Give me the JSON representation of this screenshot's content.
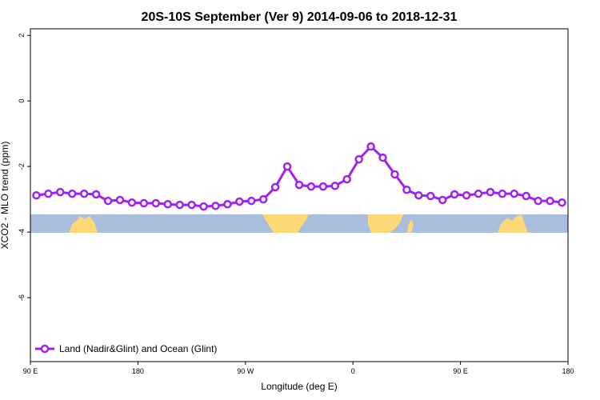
{
  "chart_data": {
    "type": "line",
    "title": "20S-10S September (Ver 9)   2014-09-06 to 2018-12-31",
    "xlabel": "Longitude (deg E)",
    "ylabel": "XCO2 - MLO trend (ppm)",
    "x": [
      95,
      105,
      115,
      125,
      135,
      145,
      155,
      165,
      175,
      185,
      195,
      205,
      215,
      225,
      235,
      245,
      255,
      265,
      275,
      285,
      295,
      305,
      315,
      325,
      335,
      345,
      355,
      365,
      375,
      385,
      395,
      405,
      415,
      425,
      435,
      445,
      455,
      465,
      475,
      485,
      495,
      505,
      515,
      525,
      535
    ],
    "series": [
      {
        "name": "Land (Nadir&Glint) and Ocean (Glint)",
        "color": "#a020f0",
        "values": [
          -2.88,
          -2.83,
          -2.78,
          -2.83,
          -2.83,
          -2.85,
          -3.05,
          -3.02,
          -3.1,
          -3.12,
          -3.12,
          -3.15,
          -3.17,
          -3.17,
          -3.22,
          -3.2,
          -3.15,
          -3.07,
          -3.05,
          -3.0,
          -2.63,
          -2.0,
          -2.56,
          -2.61,
          -2.61,
          -2.59,
          -2.39,
          -1.78,
          -1.39,
          -1.73,
          -2.24,
          -2.71,
          -2.88,
          -2.9,
          -3.02,
          -2.85,
          -2.88,
          -2.83,
          -2.78,
          -2.83,
          -2.83,
          -2.9,
          -3.05,
          -3.05,
          -3.1
        ]
      }
    ],
    "xlim": [
      90,
      540
    ],
    "xticks": [
      {
        "value": 90,
        "label": "90 E"
      },
      {
        "value": 180,
        "label": "180"
      },
      {
        "value": 270,
        "label": "90 W"
      },
      {
        "value": 360,
        "label": "0"
      },
      {
        "value": 450,
        "label": "90 E"
      },
      {
        "value": 540,
        "label": "180"
      }
    ],
    "ylim": [
      -7.95,
      2.2
    ],
    "yticks": [
      2,
      0,
      -2,
      -4,
      -6
    ],
    "legend": "bottom-left"
  }
}
